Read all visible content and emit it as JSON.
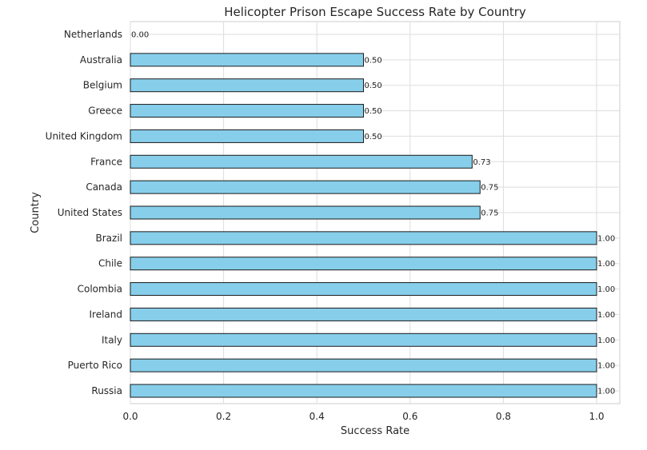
{
  "chart_data": {
    "type": "bar",
    "orientation": "horizontal",
    "title": "Helicopter Prison Escape Success Rate by Country",
    "xlabel": "Success Rate",
    "ylabel": "Country",
    "xlim": [
      0.0,
      1.05
    ],
    "x_ticks": [
      "0.0",
      "0.2",
      "0.4",
      "0.6",
      "0.8",
      "1.0"
    ],
    "grid": true,
    "bar_color": "#87ceeb",
    "bar_edge_color": "#1a1a1a",
    "categories": [
      "Netherlands",
      "Australia",
      "Belgium",
      "Greece",
      "United Kingdom",
      "France",
      "Canada",
      "United States",
      "Brazil",
      "Chile",
      "Colombia",
      "Ireland",
      "Italy",
      "Puerto Rico",
      "Russia"
    ],
    "values": [
      0.0,
      0.5,
      0.5,
      0.5,
      0.5,
      0.733,
      0.75,
      0.75,
      1.0,
      1.0,
      1.0,
      1.0,
      1.0,
      1.0,
      1.0
    ],
    "value_labels": [
      "0.00",
      "0.50",
      "0.50",
      "0.50",
      "0.50",
      "0.73",
      "0.75",
      "0.75",
      "1.00",
      "1.00",
      "1.00",
      "1.00",
      "1.00",
      "1.00",
      "1.00"
    ]
  }
}
